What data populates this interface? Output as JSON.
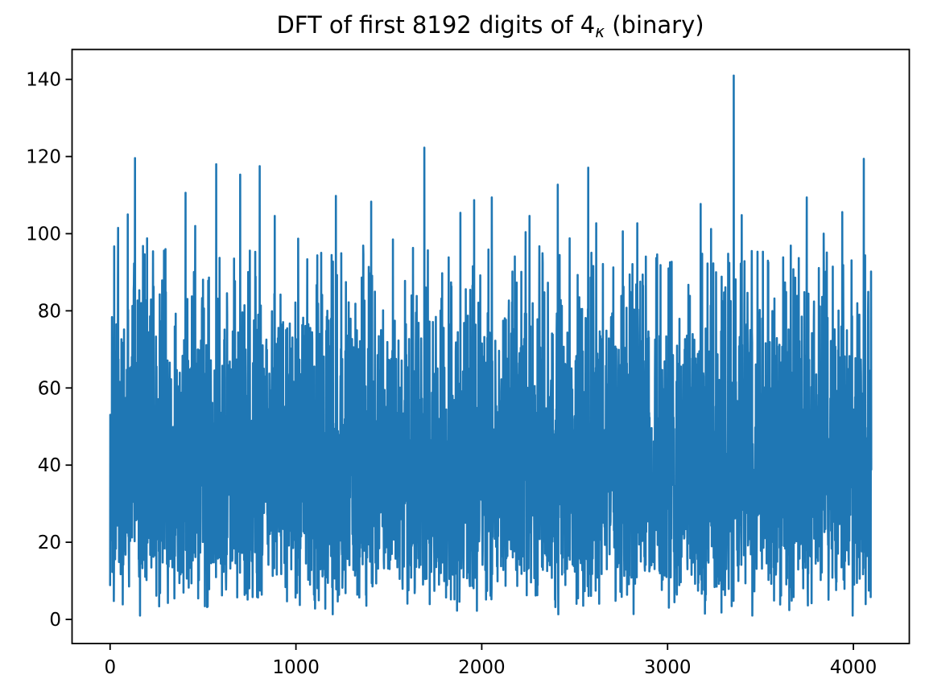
{
  "figure": {
    "background": "#ffffff",
    "spine_color": "#000000"
  },
  "chart_data": {
    "type": "line",
    "title": "DFT of first 8192 digits of 4κ (binary)",
    "title_parts": {
      "prefix": "DFT of first 8192 digits of 4",
      "subscript": "κ",
      "suffix": " (binary)"
    },
    "xlabel": "",
    "ylabel": "",
    "legend": false,
    "grid": false,
    "x_ticks": [
      0,
      1000,
      2000,
      3000,
      4000
    ],
    "y_ticks": [
      0,
      20,
      40,
      60,
      80,
      100,
      120,
      140
    ],
    "xlim": [
      -204.8,
      4300.8
    ],
    "ylim": [
      -6.25,
      147.75
    ],
    "x_range": [
      0,
      4096
    ],
    "n_points": 4097,
    "series": [
      {
        "name": "DFT magnitude",
        "color": "#1f77b4",
        "line_width": 2.6
      }
    ],
    "noise_band": {
      "description": "dense noise-like DFT magnitude spectrum filling approximately 1 to 97",
      "typical_min": 8,
      "typical_max": 75,
      "approx_mean": 40,
      "global_min": 1,
      "global_max": 141
    },
    "notable_peaks": [
      {
        "x": 22,
        "y": 96.7
      },
      {
        "x": 43,
        "y": 101.5
      },
      {
        "x": 95,
        "y": 105.0
      },
      {
        "x": 134,
        "y": 119.6
      },
      {
        "x": 199,
        "y": 98.8
      },
      {
        "x": 406,
        "y": 110.6
      },
      {
        "x": 458,
        "y": 102.0
      },
      {
        "x": 571,
        "y": 118.0
      },
      {
        "x": 700,
        "y": 115.3
      },
      {
        "x": 805,
        "y": 117.5
      },
      {
        "x": 886,
        "y": 104.6
      },
      {
        "x": 1012,
        "y": 98.7
      },
      {
        "x": 1215,
        "y": 109.8
      },
      {
        "x": 1405,
        "y": 108.3
      },
      {
        "x": 1522,
        "y": 98.5
      },
      {
        "x": 1691,
        "y": 122.3
      },
      {
        "x": 1885,
        "y": 105.4
      },
      {
        "x": 1959,
        "y": 108.7
      },
      {
        "x": 2054,
        "y": 109.4
      },
      {
        "x": 2236,
        "y": 100.4
      },
      {
        "x": 2257,
        "y": 104.6
      },
      {
        "x": 2409,
        "y": 112.7
      },
      {
        "x": 2473,
        "y": 98.8
      },
      {
        "x": 2573,
        "y": 117.1
      },
      {
        "x": 2616,
        "y": 102.7
      },
      {
        "x": 2759,
        "y": 100.6
      },
      {
        "x": 2837,
        "y": 102.7
      },
      {
        "x": 3178,
        "y": 107.7
      },
      {
        "x": 3234,
        "y": 101.2
      },
      {
        "x": 3356,
        "y": 141.0
      },
      {
        "x": 3399,
        "y": 104.8
      },
      {
        "x": 3540,
        "y": 93.0
      },
      {
        "x": 3663,
        "y": 96.9
      },
      {
        "x": 3749,
        "y": 109.4
      },
      {
        "x": 3840,
        "y": 100.0
      },
      {
        "x": 3940,
        "y": 105.6
      },
      {
        "x": 4056,
        "y": 119.4
      }
    ],
    "reconstruction": {
      "distribution": "rayleigh",
      "sigma": 32,
      "seed": 8192,
      "noise_cap": 97,
      "min": 1
    }
  }
}
